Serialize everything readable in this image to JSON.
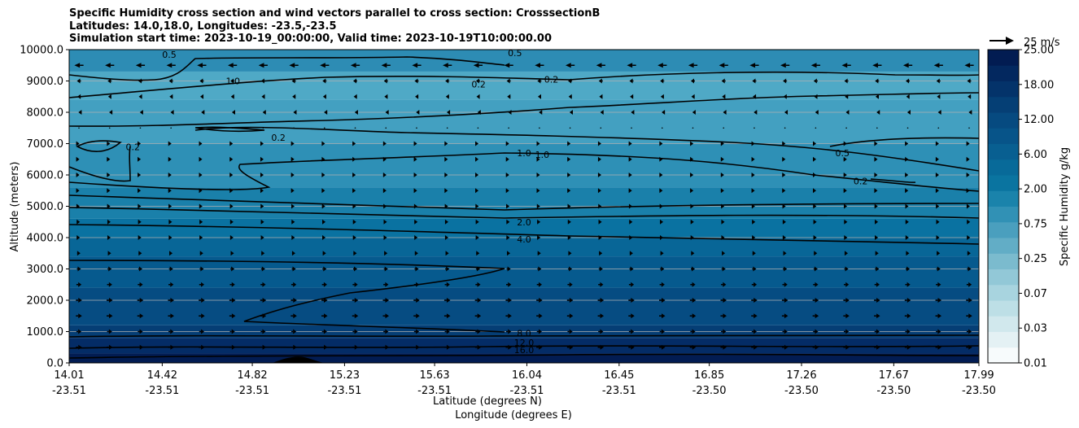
{
  "title": {
    "line1": "Specific Humidity cross section and wind vectors parallel to cross section: CrosssectionB",
    "line2": "Latitudes: 14.0,18.0, Longitudes: -23.5,-23.5",
    "line3": "Simulation start time: 2023-10-19_00:00:00, Valid time: 2023-10-19T10:00:00.00"
  },
  "chart_data": {
    "type": "heatmap",
    "ylabel": "Altitude (meters)",
    "xlabel_line1": "Latitude (degrees N)",
    "xlabel_line2": "Longitude (degrees E)",
    "ylim": [
      0,
      10000
    ],
    "yticks": [
      "0.0",
      "1000.0",
      "2000.0",
      "3000.0",
      "4000.0",
      "5000.0",
      "6000.0",
      "7000.0",
      "8000.0",
      "9000.0",
      "10000.0"
    ],
    "xticks": [
      {
        "lat": "14.01",
        "lon": "-23.51"
      },
      {
        "lat": "14.42",
        "lon": "-23.51"
      },
      {
        "lat": "14.82",
        "lon": "-23.51"
      },
      {
        "lat": "15.23",
        "lon": "-23.51"
      },
      {
        "lat": "15.63",
        "lon": "-23.51"
      },
      {
        "lat": "16.04",
        "lon": "-23.51"
      },
      {
        "lat": "16.45",
        "lon": "-23.51"
      },
      {
        "lat": "16.85",
        "lon": "-23.50"
      },
      {
        "lat": "17.26",
        "lon": "-23.50"
      },
      {
        "lat": "17.67",
        "lon": "-23.50"
      },
      {
        "lat": "17.99",
        "lon": "-23.50"
      }
    ],
    "grid": "horizontal",
    "colorbar": {
      "label": "Specific Humidity g/kg",
      "ticks": [
        "0.01",
        "0.03",
        "0.07",
        "0.25",
        "0.75",
        "2.00",
        "6.00",
        "12.00",
        "18.00",
        "25.00"
      ],
      "colors": [
        "#f7fbfc",
        "#e4f1f4",
        "#d1e8ed",
        "#bddfe6",
        "#a8d4df",
        "#92c8d7",
        "#7bbbce",
        "#62adc6",
        "#4a9fbe",
        "#3191b5",
        "#1a83ab",
        "#0a74a0",
        "#086a99",
        "#085f91",
        "#075489",
        "#064a80",
        "#053f75",
        "#04336a",
        "#03285f",
        "#021c52"
      ]
    },
    "humidity_bands": [
      {
        "from": 0,
        "to": 300,
        "color": "#021c52"
      },
      {
        "from": 300,
        "to": 800,
        "color": "#042c66"
      },
      {
        "from": 800,
        "to": 1200,
        "color": "#053e75"
      },
      {
        "from": 1200,
        "to": 2400,
        "color": "#064c82"
      },
      {
        "from": 2400,
        "to": 3400,
        "color": "#065a8e"
      },
      {
        "from": 3400,
        "to": 4000,
        "color": "#086697"
      },
      {
        "from": 4000,
        "to": 4600,
        "color": "#0a72a1"
      },
      {
        "from": 4600,
        "to": 5600,
        "color": "#1a80aa"
      },
      {
        "from": 5600,
        "to": 7000,
        "color": "#2e90b6"
      },
      {
        "from": 7000,
        "to": 8400,
        "color": "#43a0c1"
      },
      {
        "from": 8400,
        "to": 9300,
        "color": "#4fa9c6"
      },
      {
        "from": 9300,
        "to": 10000,
        "color": "#2d8cb4"
      }
    ],
    "contour_labels": [
      {
        "text": "0.5",
        "x": 0.11,
        "y": 9850
      },
      {
        "text": "1.0",
        "x": 0.18,
        "y": 9000
      },
      {
        "text": "0.2",
        "x": 0.07,
        "y": 6900
      },
      {
        "text": "0.2",
        "x": 0.23,
        "y": 7200
      },
      {
        "text": "0.5",
        "x": 0.49,
        "y": 9900
      },
      {
        "text": "0.2",
        "x": 0.45,
        "y": 8900
      },
      {
        "text": "0.2",
        "x": 0.53,
        "y": 9050
      },
      {
        "text": "1.0",
        "x": 0.5,
        "y": 6700
      },
      {
        "text": "1.0",
        "x": 0.52,
        "y": 6650
      },
      {
        "text": "0.5",
        "x": 0.85,
        "y": 6700
      },
      {
        "text": "0.2",
        "x": 0.87,
        "y": 5800
      },
      {
        "text": "2.0",
        "x": 0.5,
        "y": 4500
      },
      {
        "text": "4.0",
        "x": 0.5,
        "y": 3950
      },
      {
        "text": "8.0",
        "x": 0.5,
        "y": 950
      },
      {
        "text": "12.0",
        "x": 0.5,
        "y": 650
      },
      {
        "text": "16.0",
        "x": 0.5,
        "y": 420
      }
    ],
    "wind_reference": {
      "label": "25 m/s",
      "speed": 25
    },
    "wind_rows": [
      {
        "alt": 500,
        "u": 6
      },
      {
        "alt": 1000,
        "u": 5
      },
      {
        "alt": 1500,
        "u": 6
      },
      {
        "alt": 2000,
        "u": 6
      },
      {
        "alt": 2500,
        "u": 5
      },
      {
        "alt": 3000,
        "u": 4
      },
      {
        "alt": 3500,
        "u": 3
      },
      {
        "alt": 4000,
        "u": 2
      },
      {
        "alt": 4500,
        "u": 2
      },
      {
        "alt": 5000,
        "u": 1.5
      },
      {
        "alt": 5500,
        "u": 1
      },
      {
        "alt": 6000,
        "u": 1
      },
      {
        "alt": 6500,
        "u": 1
      },
      {
        "alt": 7000,
        "u": 1
      },
      {
        "alt": 7500,
        "u": 0.5
      },
      {
        "alt": 8000,
        "u": -1
      },
      {
        "alt": 8500,
        "u": -3
      },
      {
        "alt": 9000,
        "u": -4
      },
      {
        "alt": 9500,
        "u": -9
      }
    ]
  }
}
